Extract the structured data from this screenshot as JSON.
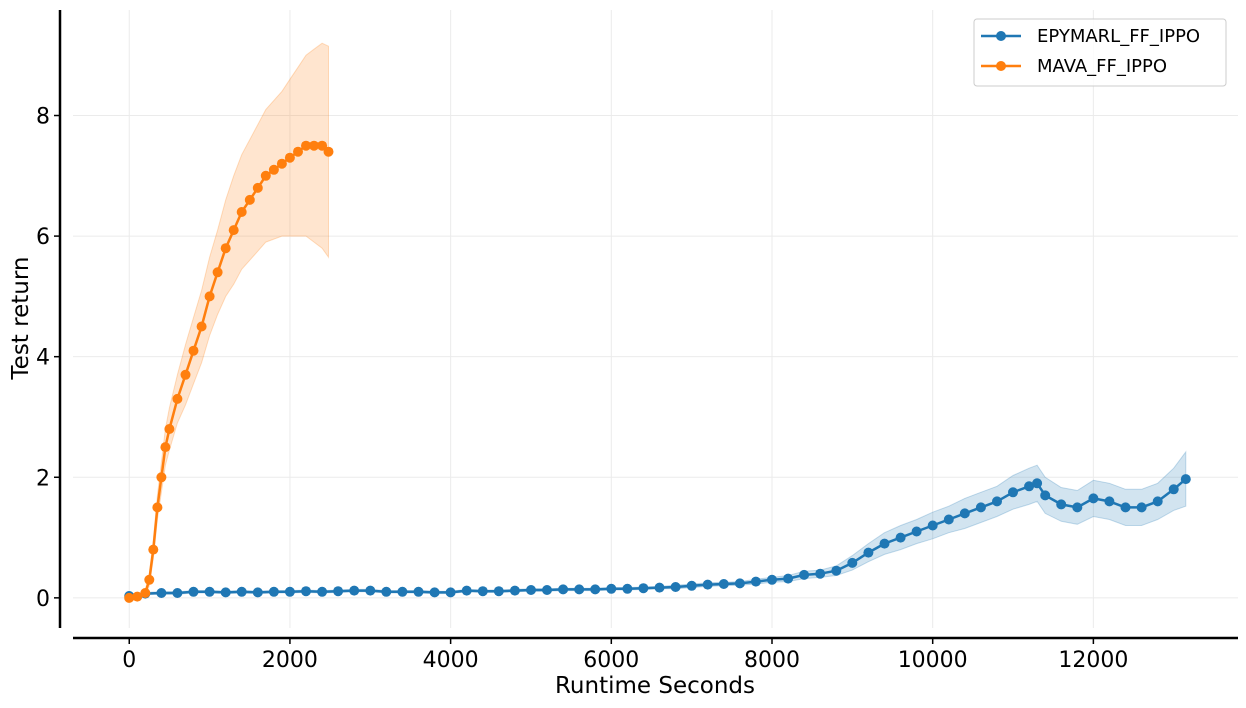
{
  "chart_data": {
    "type": "line",
    "title": "",
    "xlabel": "Runtime Seconds",
    "ylabel": "Test return",
    "xlim": [
      -700,
      13800
    ],
    "ylim": [
      -0.5,
      9.75
    ],
    "xticks": [
      0,
      2000,
      4000,
      6000,
      8000,
      10000,
      12000
    ],
    "yticks": [
      0,
      2,
      4,
      6,
      8
    ],
    "grid": true,
    "legend_position": "top-right",
    "series": [
      {
        "name": "EPYMARL_FF_IPPO",
        "color": "#1f77b4",
        "x": [
          0,
          200,
          400,
          600,
          800,
          1000,
          1200,
          1400,
          1600,
          1800,
          2000,
          2200,
          2400,
          2600,
          2800,
          3000,
          3200,
          3400,
          3600,
          3800,
          4000,
          4200,
          4400,
          4600,
          4800,
          5000,
          5200,
          5400,
          5600,
          5800,
          6000,
          6200,
          6400,
          6600,
          6800,
          7000,
          7200,
          7400,
          7600,
          7800,
          8000,
          8200,
          8400,
          8600,
          8800,
          9000,
          9200,
          9400,
          9600,
          9800,
          10000,
          10200,
          10400,
          10600,
          10800,
          11000,
          11200,
          11300,
          11400,
          11600,
          11800,
          12000,
          12200,
          12400,
          12600,
          12800,
          13000,
          13150
        ],
        "y": [
          0.03,
          0.07,
          0.08,
          0.08,
          0.1,
          0.1,
          0.09,
          0.1,
          0.09,
          0.1,
          0.1,
          0.11,
          0.1,
          0.11,
          0.12,
          0.12,
          0.1,
          0.1,
          0.1,
          0.09,
          0.09,
          0.12,
          0.11,
          0.11,
          0.12,
          0.13,
          0.13,
          0.14,
          0.14,
          0.14,
          0.15,
          0.15,
          0.16,
          0.17,
          0.18,
          0.2,
          0.22,
          0.23,
          0.24,
          0.27,
          0.3,
          0.32,
          0.38,
          0.4,
          0.45,
          0.58,
          0.75,
          0.9,
          1.0,
          1.1,
          1.2,
          1.3,
          1.4,
          1.5,
          1.6,
          1.75,
          1.85,
          1.9,
          1.7,
          1.55,
          1.5,
          1.65,
          1.6,
          1.5,
          1.5,
          1.6,
          1.8,
          1.97
        ],
        "band": [
          0.01,
          0.02,
          0.02,
          0.02,
          0.02,
          0.02,
          0.02,
          0.02,
          0.02,
          0.02,
          0.02,
          0.02,
          0.02,
          0.02,
          0.02,
          0.02,
          0.02,
          0.02,
          0.02,
          0.02,
          0.02,
          0.02,
          0.02,
          0.02,
          0.02,
          0.02,
          0.02,
          0.02,
          0.02,
          0.02,
          0.02,
          0.02,
          0.02,
          0.02,
          0.03,
          0.03,
          0.03,
          0.03,
          0.03,
          0.04,
          0.04,
          0.05,
          0.06,
          0.06,
          0.08,
          0.12,
          0.15,
          0.18,
          0.2,
          0.2,
          0.22,
          0.22,
          0.25,
          0.25,
          0.25,
          0.28,
          0.3,
          0.3,
          0.3,
          0.28,
          0.28,
          0.3,
          0.3,
          0.3,
          0.3,
          0.3,
          0.35,
          0.45
        ]
      },
      {
        "name": "MAVA_FF_IPPO",
        "color": "#ff7f0e",
        "x": [
          0,
          100,
          200,
          250,
          300,
          350,
          400,
          450,
          500,
          600,
          700,
          800,
          900,
          1000,
          1100,
          1200,
          1300,
          1400,
          1500,
          1600,
          1700,
          1800,
          1900,
          2000,
          2100,
          2200,
          2300,
          2400,
          2480
        ],
        "y": [
          0.0,
          0.02,
          0.08,
          0.3,
          0.8,
          1.5,
          2.0,
          2.5,
          2.8,
          3.3,
          3.7,
          4.1,
          4.5,
          5.0,
          5.4,
          5.8,
          6.1,
          6.4,
          6.6,
          6.8,
          7.0,
          7.1,
          7.2,
          7.3,
          7.4,
          7.5,
          7.5,
          7.5,
          7.4
        ],
        "band": [
          0.0,
          0.02,
          0.05,
          0.1,
          0.15,
          0.2,
          0.25,
          0.3,
          0.35,
          0.4,
          0.5,
          0.55,
          0.6,
          0.65,
          0.7,
          0.8,
          0.9,
          0.95,
          1.0,
          1.05,
          1.1,
          1.15,
          1.2,
          1.3,
          1.4,
          1.5,
          1.6,
          1.7,
          1.75
        ]
      }
    ]
  }
}
